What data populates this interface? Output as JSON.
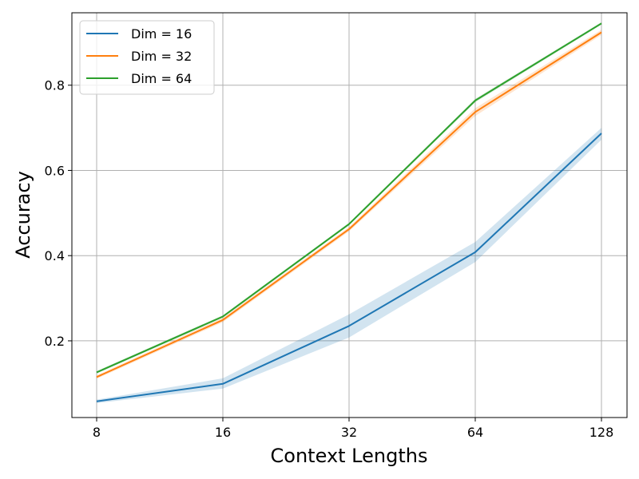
{
  "chart_data": {
    "type": "line",
    "xlabel": "Context Lengths",
    "ylabel": "Accuracy",
    "x": [
      8,
      16,
      32,
      64,
      128
    ],
    "x_ticks": [
      "8",
      "16",
      "32",
      "64",
      "128"
    ],
    "x_scale": "log2",
    "y_ticks": [
      "0.2",
      "0.4",
      "0.6",
      "0.8"
    ],
    "y_tick_values": [
      0.2,
      0.4,
      0.6,
      0.8
    ],
    "ylim": [
      0.02,
      0.97
    ],
    "grid": true,
    "legend_position": "top-left",
    "series": [
      {
        "name": "Dim = 16",
        "color": "#1f77b4",
        "values": [
          0.058,
          0.099,
          0.235,
          0.408,
          0.687
        ],
        "lower": [
          0.054,
          0.088,
          0.208,
          0.385,
          0.672
        ],
        "upper": [
          0.062,
          0.112,
          0.262,
          0.432,
          0.7
        ]
      },
      {
        "name": "Dim = 32",
        "color": "#ff7f0e",
        "values": [
          0.115,
          0.249,
          0.462,
          0.737,
          0.924
        ],
        "lower": [
          0.111,
          0.244,
          0.457,
          0.728,
          0.918
        ],
        "upper": [
          0.119,
          0.254,
          0.467,
          0.746,
          0.93
        ]
      },
      {
        "name": "Dim = 64",
        "color": "#2ca02c",
        "values": [
          0.126,
          0.257,
          0.474,
          0.764,
          0.945
        ],
        "lower": [
          0.123,
          0.254,
          0.471,
          0.76,
          0.942
        ],
        "upper": [
          0.129,
          0.26,
          0.477,
          0.768,
          0.948
        ]
      }
    ]
  }
}
